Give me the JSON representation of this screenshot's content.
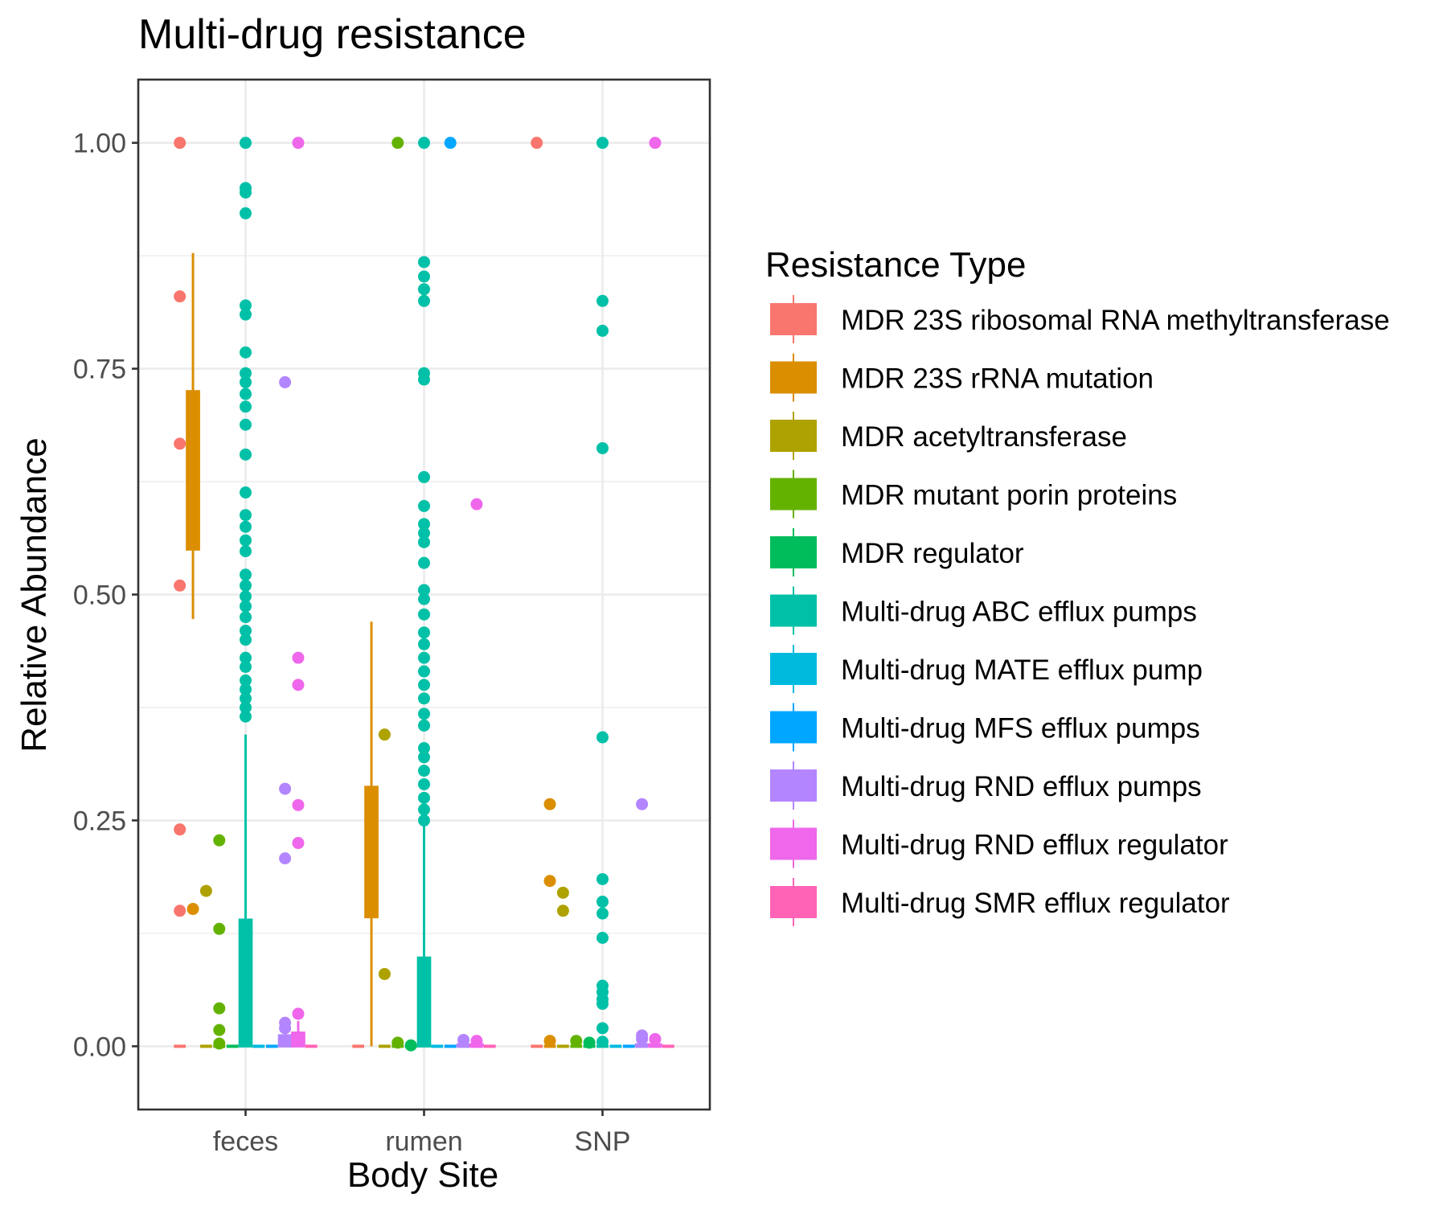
{
  "chart_data": {
    "type": "boxplot",
    "title": "Multi-drug resistance",
    "xlabel": "Body Site",
    "ylabel": "Relative Abundance",
    "categories": [
      "feces",
      "rumen",
      "SNP"
    ],
    "ylim": [
      -0.07,
      1.07
    ],
    "yticks": [
      0.0,
      0.25,
      0.5,
      0.75,
      1.0
    ],
    "ytick_labels": [
      "0.00",
      "0.25",
      "0.50",
      "0.75",
      "1.00"
    ],
    "grid": true,
    "legend": {
      "title": "Resistance Type",
      "position": "right",
      "entries": [
        {
          "name": "MDR 23S ribosomal RNA methyltransferase",
          "color": "#F8766D"
        },
        {
          "name": "MDR 23S rRNA mutation",
          "color": "#DB8E00"
        },
        {
          "name": "MDR acetyltransferase",
          "color": "#AEA200"
        },
        {
          "name": "MDR mutant porin proteins",
          "color": "#64B200"
        },
        {
          "name": "MDR regulator",
          "color": "#00BD5C"
        },
        {
          "name": "Multi-drug ABC efflux pumps",
          "color": "#00C1A7"
        },
        {
          "name": "Multi-drug MATE efflux pump",
          "color": "#00BADE"
        },
        {
          "name": "Multi-drug MFS efflux pumps",
          "color": "#00A6FF"
        },
        {
          "name": "Multi-drug RND efflux pumps",
          "color": "#B385FF"
        },
        {
          "name": "Multi-drug RND efflux regulator",
          "color": "#EF67EB"
        },
        {
          "name": "Multi-drug SMR efflux regulator",
          "color": "#FF63B6"
        }
      ]
    },
    "series": [
      {
        "name": "MDR 23S ribosomal RNA methyltransferase",
        "color": "#F8766D",
        "boxes": [
          {
            "category": "feces",
            "q1": 0,
            "median": 0,
            "q3": 0,
            "whisker_low": 0,
            "whisker_high": 0,
            "outliers": [
              1.0,
              0.83,
              0.667,
              0.51,
              0.24,
              0.15
            ]
          },
          {
            "category": "rumen",
            "q1": 0,
            "median": 0,
            "q3": 0,
            "whisker_low": 0,
            "whisker_high": 0,
            "outliers": []
          },
          {
            "category": "SNP",
            "q1": 0,
            "median": 0,
            "q3": 0,
            "whisker_low": 0,
            "whisker_high": 0,
            "outliers": [
              1.0
            ]
          }
        ]
      },
      {
        "name": "MDR 23S rRNA mutation",
        "color": "#DB8E00",
        "boxes": [
          {
            "category": "feces",
            "q1": 0.55,
            "median": 0.64,
            "q3": 0.725,
            "whisker_low": 0.473,
            "whisker_high": 0.878,
            "outliers": [
              0.152
            ]
          },
          {
            "category": "rumen",
            "q1": 0.143,
            "median": 0.21,
            "q3": 0.287,
            "whisker_low": 0,
            "whisker_high": 0.47,
            "outliers": []
          },
          {
            "category": "SNP",
            "q1": 0,
            "median": 0,
            "q3": 0,
            "whisker_low": 0,
            "whisker_high": 0,
            "outliers": [
              0.268,
              0.183,
              0.006
            ]
          }
        ]
      },
      {
        "name": "MDR acetyltransferase",
        "color": "#AEA200",
        "boxes": [
          {
            "category": "feces",
            "q1": 0,
            "median": 0,
            "q3": 0,
            "whisker_low": 0,
            "whisker_high": 0,
            "outliers": [
              0.172
            ]
          },
          {
            "category": "rumen",
            "q1": 0,
            "median": 0,
            "q3": 0,
            "whisker_low": 0,
            "whisker_high": 0,
            "outliers": [
              0.345,
              0.08
            ]
          },
          {
            "category": "SNP",
            "q1": 0,
            "median": 0,
            "q3": 0,
            "whisker_low": 0,
            "whisker_high": 0,
            "outliers": [
              0.17,
              0.15
            ]
          }
        ]
      },
      {
        "name": "MDR mutant porin proteins",
        "color": "#64B200",
        "boxes": [
          {
            "category": "feces",
            "q1": 0,
            "median": 0,
            "q3": 0,
            "whisker_low": 0,
            "whisker_high": 0,
            "outliers": [
              0.228,
              0.13,
              0.042,
              0.018,
              0.003
            ]
          },
          {
            "category": "rumen",
            "q1": 0,
            "median": 0,
            "q3": 0,
            "whisker_low": 0,
            "whisker_high": 0,
            "outliers": [
              1.0,
              0.004
            ]
          },
          {
            "category": "SNP",
            "q1": 0,
            "median": 0,
            "q3": 0,
            "whisker_low": 0,
            "whisker_high": 0,
            "outliers": [
              0.006
            ]
          }
        ]
      },
      {
        "name": "MDR regulator",
        "color": "#00BD5C",
        "boxes": [
          {
            "category": "feces",
            "q1": 0,
            "median": 0,
            "q3": 0,
            "whisker_low": 0,
            "whisker_high": 0,
            "outliers": []
          },
          {
            "category": "rumen",
            "q1": 0,
            "median": 0,
            "q3": 0,
            "whisker_low": 0,
            "whisker_high": 0,
            "outliers": [
              0.001
            ]
          },
          {
            "category": "SNP",
            "q1": 0,
            "median": 0,
            "q3": 0,
            "whisker_low": 0,
            "whisker_high": 0,
            "outliers": [
              0.004
            ]
          }
        ]
      },
      {
        "name": "Multi-drug ABC efflux pumps",
        "color": "#00C1A7",
        "boxes": [
          {
            "category": "feces",
            "q1": 0,
            "median": 0.003,
            "q3": 0.14,
            "whisker_low": 0,
            "whisker_high": 0.345,
            "outliers": [
              1.0,
              0.95,
              0.945,
              0.922,
              0.82,
              0.81,
              0.768,
              0.745,
              0.735,
              0.722,
              0.708,
              0.688,
              0.655,
              0.613,
              0.588,
              0.575,
              0.56,
              0.548,
              0.522,
              0.51,
              0.498,
              0.487,
              0.475,
              0.46,
              0.45,
              0.43,
              0.42,
              0.405,
              0.395,
              0.385,
              0.375,
              0.365
            ]
          },
          {
            "category": "rumen",
            "q1": 0,
            "median": 0.002,
            "q3": 0.098,
            "whisker_low": 0,
            "whisker_high": 0.245,
            "outliers": [
              1.0,
              0.868,
              0.852,
              0.838,
              0.825,
              0.745,
              0.738,
              0.63,
              0.598,
              0.578,
              0.568,
              0.558,
              0.535,
              0.505,
              0.495,
              0.478,
              0.458,
              0.445,
              0.43,
              0.415,
              0.4,
              0.385,
              0.368,
              0.355,
              0.33,
              0.32,
              0.305,
              0.29,
              0.275,
              0.262,
              0.25
            ]
          },
          {
            "category": "SNP",
            "q1": 0,
            "median": 0,
            "q3": 0,
            "whisker_low": 0,
            "whisker_high": 0,
            "outliers": [
              1.0,
              0.825,
              0.792,
              0.662,
              0.342,
              0.185,
              0.16,
              0.147,
              0.12,
              0.067,
              0.06,
              0.052,
              0.047,
              0.02,
              0.005
            ]
          }
        ]
      },
      {
        "name": "Multi-drug MATE efflux pump",
        "color": "#00BADE",
        "boxes": [
          {
            "category": "feces",
            "q1": 0,
            "median": 0,
            "q3": 0,
            "whisker_low": 0,
            "whisker_high": 0,
            "outliers": []
          },
          {
            "category": "rumen",
            "q1": 0,
            "median": 0,
            "q3": 0,
            "whisker_low": 0,
            "whisker_high": 0,
            "outliers": []
          },
          {
            "category": "SNP",
            "q1": 0,
            "median": 0,
            "q3": 0,
            "whisker_low": 0,
            "whisker_high": 0,
            "outliers": []
          }
        ]
      },
      {
        "name": "Multi-drug MFS efflux pumps",
        "color": "#00A6FF",
        "boxes": [
          {
            "category": "feces",
            "q1": 0,
            "median": 0,
            "q3": 0,
            "whisker_low": 0,
            "whisker_high": 0,
            "outliers": []
          },
          {
            "category": "rumen",
            "q1": 0,
            "median": 0,
            "q3": 0,
            "whisker_low": 0,
            "whisker_high": 0,
            "outliers": [
              1.0
            ]
          },
          {
            "category": "SNP",
            "q1": 0,
            "median": 0,
            "q3": 0,
            "whisker_low": 0,
            "whisker_high": 0,
            "outliers": []
          }
        ]
      },
      {
        "name": "Multi-drug RND efflux pumps",
        "color": "#B385FF",
        "boxes": [
          {
            "category": "feces",
            "q1": 0,
            "median": 0.004,
            "q3": 0.012,
            "whisker_low": 0,
            "whisker_high": 0.022,
            "outliers": [
              0.735,
              0.285,
              0.208,
              0.026,
              0.02
            ]
          },
          {
            "category": "rumen",
            "q1": 0,
            "median": 0,
            "q3": 0.002,
            "whisker_low": 0,
            "whisker_high": 0.004,
            "outliers": [
              0.007
            ]
          },
          {
            "category": "SNP",
            "q1": 0,
            "median": 0,
            "q3": 0.002,
            "whisker_low": 0,
            "whisker_high": 0.004,
            "outliers": [
              0.268,
              0.012,
              0.008
            ]
          }
        ]
      },
      {
        "name": "Multi-drug RND efflux regulator",
        "color": "#EF67EB",
        "boxes": [
          {
            "category": "feces",
            "q1": 0,
            "median": 0.003,
            "q3": 0.015,
            "whisker_low": 0,
            "whisker_high": 0.028,
            "outliers": [
              1.0,
              0.43,
              0.4,
              0.267,
              0.225,
              0.036
            ]
          },
          {
            "category": "rumen",
            "q1": 0,
            "median": 0,
            "q3": 0.002,
            "whisker_low": 0,
            "whisker_high": 0.004,
            "outliers": [
              0.6,
              0.006
            ]
          },
          {
            "category": "SNP",
            "q1": 0,
            "median": 0,
            "q3": 0.002,
            "whisker_low": 0,
            "whisker_high": 0.004,
            "outliers": [
              1.0,
              0.008
            ]
          }
        ]
      },
      {
        "name": "Multi-drug SMR efflux regulator",
        "color": "#FF63B6",
        "boxes": [
          {
            "category": "feces",
            "q1": 0,
            "median": 0,
            "q3": 0,
            "whisker_low": 0,
            "whisker_high": 0,
            "outliers": []
          },
          {
            "category": "rumen",
            "q1": 0,
            "median": 0,
            "q3": 0,
            "whisker_low": 0,
            "whisker_high": 0,
            "outliers": []
          },
          {
            "category": "SNP",
            "q1": 0,
            "median": 0,
            "q3": 0,
            "whisker_low": 0,
            "whisker_high": 0,
            "outliers": []
          }
        ]
      }
    ]
  }
}
